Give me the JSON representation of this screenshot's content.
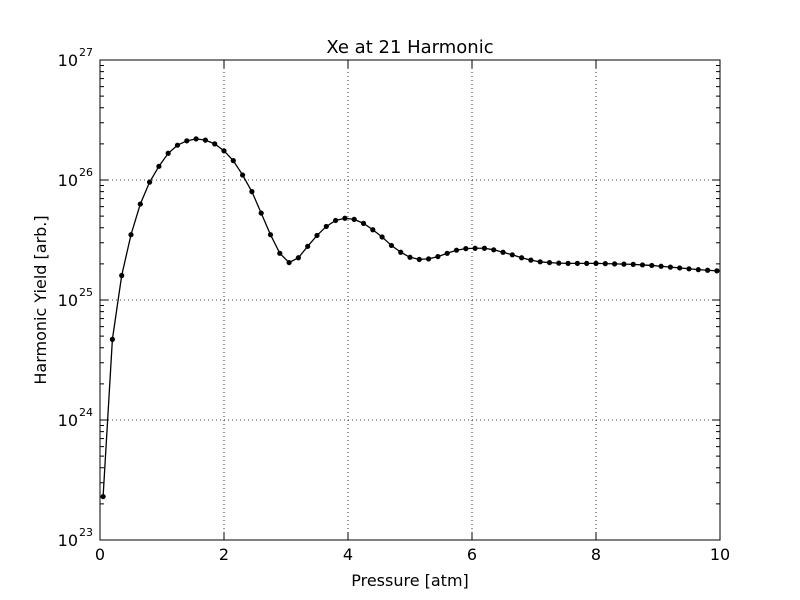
{
  "chart_data": {
    "type": "line",
    "title": "Xe at 21 Harmonic",
    "xlabel": "Pressure [atm]",
    "ylabel": "Harmonic Yield [arb.]",
    "xlim": [
      0,
      10
    ],
    "ylim": [
      1e+23,
      1e+27
    ],
    "yscale": "log",
    "grid": true,
    "x_ticks": [
      "0",
      "2",
      "4",
      "6",
      "8",
      "10"
    ],
    "y_ticks": [
      {
        "base": "10",
        "exp": "23"
      },
      {
        "base": "10",
        "exp": "24"
      },
      {
        "base": "10",
        "exp": "25"
      },
      {
        "base": "10",
        "exp": "26"
      },
      {
        "base": "10",
        "exp": "27"
      }
    ],
    "series": [
      {
        "color": "#000000",
        "marker": "dot",
        "x": [
          0.05,
          0.2,
          0.35,
          0.5,
          0.65,
          0.8,
          0.95,
          1.1,
          1.25,
          1.4,
          1.55,
          1.7,
          1.85,
          2.0,
          2.15,
          2.3,
          2.45,
          2.6,
          2.75,
          2.9,
          3.05,
          3.2,
          3.35,
          3.5,
          3.65,
          3.8,
          3.95,
          4.1,
          4.25,
          4.4,
          4.55,
          4.7,
          4.85,
          5.0,
          5.15,
          5.3,
          5.45,
          5.6,
          5.75,
          5.9,
          6.05,
          6.2,
          6.35,
          6.5,
          6.65,
          6.8,
          6.95,
          7.1,
          7.25,
          7.4,
          7.55,
          7.7,
          7.85,
          8.0,
          8.15,
          8.3,
          8.45,
          8.6,
          8.75,
          8.9,
          9.05,
          9.2,
          9.35,
          9.5,
          9.65,
          9.8,
          9.95
        ],
        "y": [
          2.3e+23,
          4.7e+24,
          1.6e+25,
          3.5e+25,
          6.3e+25,
          9.6e+25,
          1.3e+26,
          1.67e+26,
          1.95e+26,
          2.12e+26,
          2.2e+26,
          2.15e+26,
          2e+26,
          1.75e+26,
          1.45e+26,
          1.1e+26,
          8e+25,
          5.3e+25,
          3.5e+25,
          2.45e+25,
          2.05e+25,
          2.25e+25,
          2.8e+25,
          3.45e+25,
          4.1e+25,
          4.6e+25,
          4.8e+25,
          4.7e+25,
          4.35e+25,
          3.85e+25,
          3.35e+25,
          2.85e+25,
          2.5e+25,
          2.27e+25,
          2.18e+25,
          2.2e+25,
          2.3e+25,
          2.45e+25,
          2.6e+25,
          2.68e+25,
          2.7e+25,
          2.7e+25,
          2.62e+25,
          2.5e+25,
          2.38e+25,
          2.25e+25,
          2.15e+25,
          2.08e+25,
          2.05e+25,
          2.03e+25,
          2.02e+25,
          2.02e+25,
          2.02e+25,
          2.02e+25,
          2.01e+25,
          2e+25,
          1.99e+25,
          1.98e+25,
          1.96e+25,
          1.94e+25,
          1.91e+25,
          1.88e+25,
          1.85e+25,
          1.82e+25,
          1.79e+25,
          1.77e+25,
          1.75e+25
        ]
      }
    ]
  }
}
